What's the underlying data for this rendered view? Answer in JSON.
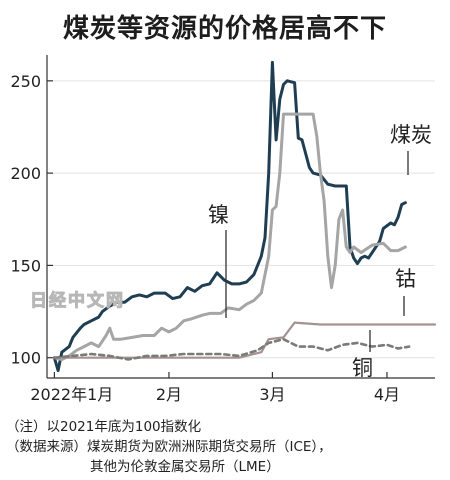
{
  "title": "煤炭等资源的价格居高不下",
  "footnotes": {
    "note": "（注）以2021年底为100指数化",
    "source_line1": "（数据来源）煤炭期货为欧洲洲际期货交易所（ICE），",
    "source_line2": "其他为伦敦金属交易所（LME）"
  },
  "watermark": "日经中文网",
  "colors": {
    "coal": "#1f3e52",
    "nickel": "#a5a5a5",
    "cobalt": "#a3928f",
    "copper": "#7a7a7a"
  },
  "chart_data": {
    "type": "line",
    "title": "煤炭等资源的价格居高不下",
    "xlabel": "",
    "ylabel": "",
    "x_ticks": [
      {
        "label": "2022年1月",
        "day": 0
      },
      {
        "label": "2月",
        "day": 31
      },
      {
        "label": "3月",
        "day": 59
      },
      {
        "label": "4月",
        "day": 90
      }
    ],
    "xlim": [
      -2,
      103
    ],
    "y_ticks": [
      100,
      150,
      200,
      250
    ],
    "ylim": [
      89,
      264
    ],
    "series": [
      {
        "name": "煤炭",
        "key": "coal",
        "style": "solid",
        "points": [
          [
            0,
            100
          ],
          [
            1,
            93
          ],
          [
            2,
            103
          ],
          [
            4,
            106
          ],
          [
            5,
            111
          ],
          [
            7,
            116
          ],
          [
            8,
            118
          ],
          [
            10,
            120
          ],
          [
            12,
            122
          ],
          [
            13,
            125
          ],
          [
            15,
            128
          ],
          [
            17,
            130
          ],
          [
            19,
            130
          ],
          [
            21,
            133
          ],
          [
            23,
            134
          ],
          [
            25,
            133
          ],
          [
            27,
            135
          ],
          [
            30,
            135
          ],
          [
            32,
            132
          ],
          [
            34,
            133
          ],
          [
            36,
            138
          ],
          [
            38,
            136
          ],
          [
            40,
            139
          ],
          [
            42,
            140
          ],
          [
            44,
            146
          ],
          [
            46,
            142
          ],
          [
            48,
            140
          ],
          [
            50,
            140
          ],
          [
            52,
            141
          ],
          [
            54,
            145
          ],
          [
            56,
            155
          ],
          [
            57,
            165
          ],
          [
            58,
            200
          ],
          [
            59,
            260
          ],
          [
            60,
            218
          ],
          [
            61,
            240
          ],
          [
            62,
            248
          ],
          [
            63,
            250
          ],
          [
            65,
            249
          ],
          [
            66,
            219
          ],
          [
            67,
            218
          ],
          [
            69,
            203
          ],
          [
            70,
            200
          ],
          [
            72,
            199
          ],
          [
            74,
            194
          ],
          [
            76,
            193
          ],
          [
            79,
            193
          ],
          [
            80,
            160
          ],
          [
            81,
            154
          ],
          [
            82,
            151
          ],
          [
            83,
            154
          ],
          [
            84,
            155
          ],
          [
            85,
            154
          ],
          [
            86,
            157
          ],
          [
            88,
            163
          ],
          [
            89,
            170
          ],
          [
            91,
            173
          ],
          [
            92,
            172
          ],
          [
            93,
            176
          ],
          [
            94,
            183
          ],
          [
            95,
            184
          ]
        ]
      },
      {
        "name": "镍",
        "key": "nickel",
        "style": "solid",
        "points": [
          [
            0,
            100
          ],
          [
            2,
            99
          ],
          [
            4,
            101
          ],
          [
            6,
            104
          ],
          [
            8,
            106
          ],
          [
            10,
            108
          ],
          [
            12,
            106
          ],
          [
            14,
            112
          ],
          [
            15,
            116
          ],
          [
            16,
            110
          ],
          [
            18,
            110
          ],
          [
            21,
            111
          ],
          [
            24,
            112
          ],
          [
            27,
            112
          ],
          [
            29,
            116
          ],
          [
            31,
            114
          ],
          [
            33,
            116
          ],
          [
            35,
            120
          ],
          [
            37,
            121
          ],
          [
            40,
            123
          ],
          [
            42,
            124
          ],
          [
            45,
            124
          ],
          [
            47,
            127
          ],
          [
            50,
            126
          ],
          [
            52,
            129
          ],
          [
            54,
            131
          ],
          [
            56,
            135
          ],
          [
            58,
            155
          ],
          [
            59,
            180
          ],
          [
            60,
            182
          ],
          [
            61,
            200
          ],
          [
            62,
            232
          ],
          [
            66,
            232
          ],
          [
            70,
            232
          ],
          [
            71,
            220
          ],
          [
            72,
            200
          ],
          [
            73,
            185
          ],
          [
            74,
            155
          ],
          [
            75,
            138
          ],
          [
            76,
            150
          ],
          [
            77,
            175
          ],
          [
            78,
            180
          ],
          [
            79,
            160
          ],
          [
            80,
            157
          ],
          [
            81,
            160
          ],
          [
            83,
            157
          ],
          [
            86,
            161
          ],
          [
            89,
            162
          ],
          [
            91,
            158
          ],
          [
            93,
            158
          ],
          [
            95,
            160
          ]
        ]
      },
      {
        "name": "钴",
        "key": "cobalt",
        "style": "solid",
        "points": [
          [
            0,
            100
          ],
          [
            50,
            100
          ],
          [
            56,
            103
          ],
          [
            58,
            110
          ],
          [
            62,
            111
          ],
          [
            65,
            119
          ],
          [
            72,
            118
          ],
          [
            103,
            118
          ]
        ]
      },
      {
        "name": "铜",
        "key": "copper",
        "style": "dashed",
        "points": [
          [
            0,
            100
          ],
          [
            5,
            101
          ],
          [
            10,
            102
          ],
          [
            15,
            101
          ],
          [
            20,
            99
          ],
          [
            25,
            101
          ],
          [
            30,
            101
          ],
          [
            35,
            102
          ],
          [
            40,
            102
          ],
          [
            45,
            102
          ],
          [
            50,
            101
          ],
          [
            55,
            104
          ],
          [
            58,
            108
          ],
          [
            62,
            110
          ],
          [
            66,
            106
          ],
          [
            70,
            106
          ],
          [
            74,
            104
          ],
          [
            78,
            107
          ],
          [
            82,
            108
          ],
          [
            86,
            106
          ],
          [
            90,
            107
          ],
          [
            93,
            105
          ],
          [
            96,
            106
          ]
        ]
      }
    ],
    "labels": [
      {
        "text": "煤炭",
        "series": "coal"
      },
      {
        "text": "镍",
        "series": "nickel"
      },
      {
        "text": "钴",
        "series": "cobalt"
      },
      {
        "text": "铜",
        "series": "copper"
      }
    ]
  }
}
